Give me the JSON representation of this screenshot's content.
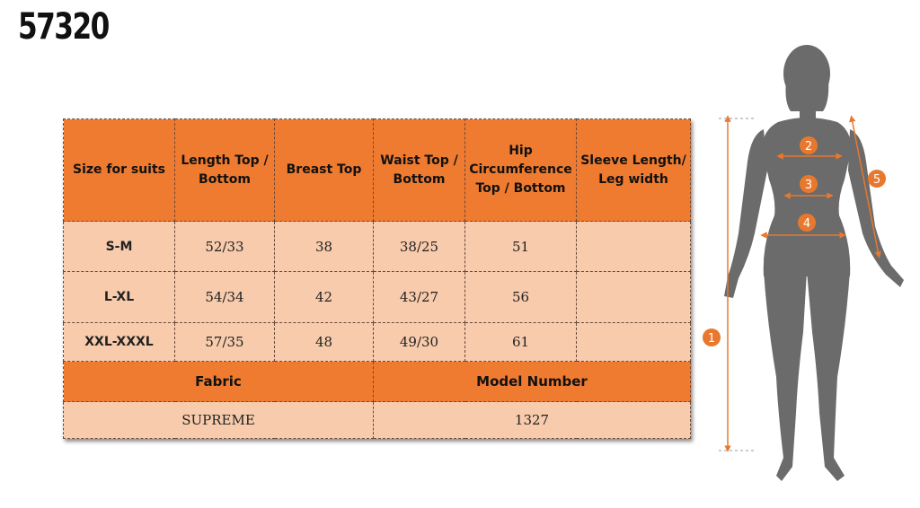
{
  "product_code": "57320",
  "table": {
    "headers": [
      "Size for suits",
      "Length Top / Bottom",
      "Breast Top",
      "Waist Top / Bottom",
      "Hip Circumference Top / Bottom",
      "Sleeve Length/ Leg width"
    ],
    "rows": [
      {
        "size": "S-M",
        "length": "52/33",
        "breast": "38",
        "waist": "38/25",
        "hip": "51",
        "sleeve": ""
      },
      {
        "size": "L-XL",
        "length": "54/34",
        "breast": "42",
        "waist": "43/27",
        "hip": "56",
        "sleeve": ""
      },
      {
        "size": "XXL-XXXL",
        "length": "57/35",
        "breast": "48",
        "waist": "49/30",
        "hip": "61",
        "sleeve": ""
      }
    ],
    "fabric_label": "Fabric",
    "model_number_label": "Model Number",
    "fabric_value": "SUPREME",
    "model_number_value": "1327"
  },
  "figure": {
    "markers": [
      "1",
      "2",
      "3",
      "4",
      "5"
    ],
    "silhouette_color": "#6b6b6b",
    "marker_color": "#e8782e"
  },
  "colors": {
    "header_orange": "#ee7b30",
    "cell_peach": "#f7cbac"
  }
}
